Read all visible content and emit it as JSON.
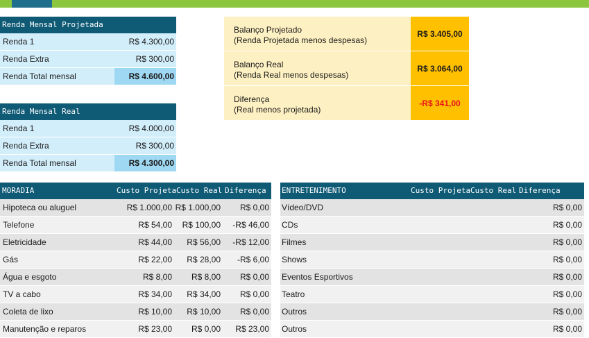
{
  "renda_projetada": {
    "header": "Renda Mensal Projetada",
    "rows": [
      {
        "label": "Renda 1",
        "value": "R$ 4.300,00"
      },
      {
        "label": "Renda Extra",
        "value": "R$ 300,00"
      }
    ],
    "total": {
      "label": "Renda Total mensal",
      "value": "R$ 4.600,00"
    }
  },
  "renda_real": {
    "header": "Renda Mensal Real",
    "rows": [
      {
        "label": "Renda 1",
        "value": "R$ 4.000,00"
      },
      {
        "label": "Renda Extra",
        "value": "R$ 300,00"
      }
    ],
    "total": {
      "label": "Renda Total mensal",
      "value": "R$ 4.300,00"
    }
  },
  "balanco": [
    {
      "line1": "Balanço Projetado",
      "line2": "(Renda Projetada menos despesas)",
      "value": "R$ 3.405,00"
    },
    {
      "line1": "Balanço Real",
      "line2": "(Renda Real menos despesas)",
      "value": "R$ 3.064,00"
    },
    {
      "line1": "Diferença",
      "line2": "(Real menos projetada)",
      "value": "-R$ 341,00"
    }
  ],
  "moradia": {
    "headers": [
      "MORADIA",
      "Custo Projetado",
      "Custo Real",
      "Diferença"
    ],
    "rows": [
      {
        "label": "Hipoteca ou aluguel",
        "proj": "R$ 1.000,00",
        "real": "R$ 1.000,00",
        "dif": "R$ 0,00"
      },
      {
        "label": "Telefone",
        "proj": "R$ 54,00",
        "real": "R$ 100,00",
        "dif": "-R$ 46,00"
      },
      {
        "label": "Eletricidade",
        "proj": "R$ 44,00",
        "real": "R$ 56,00",
        "dif": "-R$ 12,00"
      },
      {
        "label": "Gás",
        "proj": "R$ 22,00",
        "real": "R$ 28,00",
        "dif": "-R$ 6,00"
      },
      {
        "label": "Água e esgoto",
        "proj": "R$ 8,00",
        "real": "R$ 8,00",
        "dif": "R$ 0,00"
      },
      {
        "label": "TV a cabo",
        "proj": "R$ 34,00",
        "real": "R$ 34,00",
        "dif": "R$ 0,00"
      },
      {
        "label": "Coleta de lixo",
        "proj": "R$ 10,00",
        "real": "R$ 10,00",
        "dif": "R$ 0,00"
      },
      {
        "label": "Manutenção e reparos",
        "proj": "R$ 23,00",
        "real": "R$ 0,00",
        "dif": "R$ 23,00"
      }
    ]
  },
  "entretenimento": {
    "headers": [
      "ENTRETENIMENTO",
      "Custo Projetado",
      "Custo Real",
      "Diferença"
    ],
    "rows": [
      {
        "label": "Vídeo/DVD",
        "dif": "R$ 0,00"
      },
      {
        "label": "CDs",
        "dif": "R$ 0,00"
      },
      {
        "label": "Filmes",
        "dif": "R$ 0,00"
      },
      {
        "label": "Shows",
        "dif": "R$ 0,00"
      },
      {
        "label": "Eventos Esportivos",
        "dif": "R$ 0,00"
      },
      {
        "label": "Teatro",
        "dif": "R$ 0,00"
      },
      {
        "label": "Outros",
        "dif": "R$ 0,00"
      },
      {
        "label": "Outros",
        "dif": "R$ 0,00"
      }
    ]
  }
}
